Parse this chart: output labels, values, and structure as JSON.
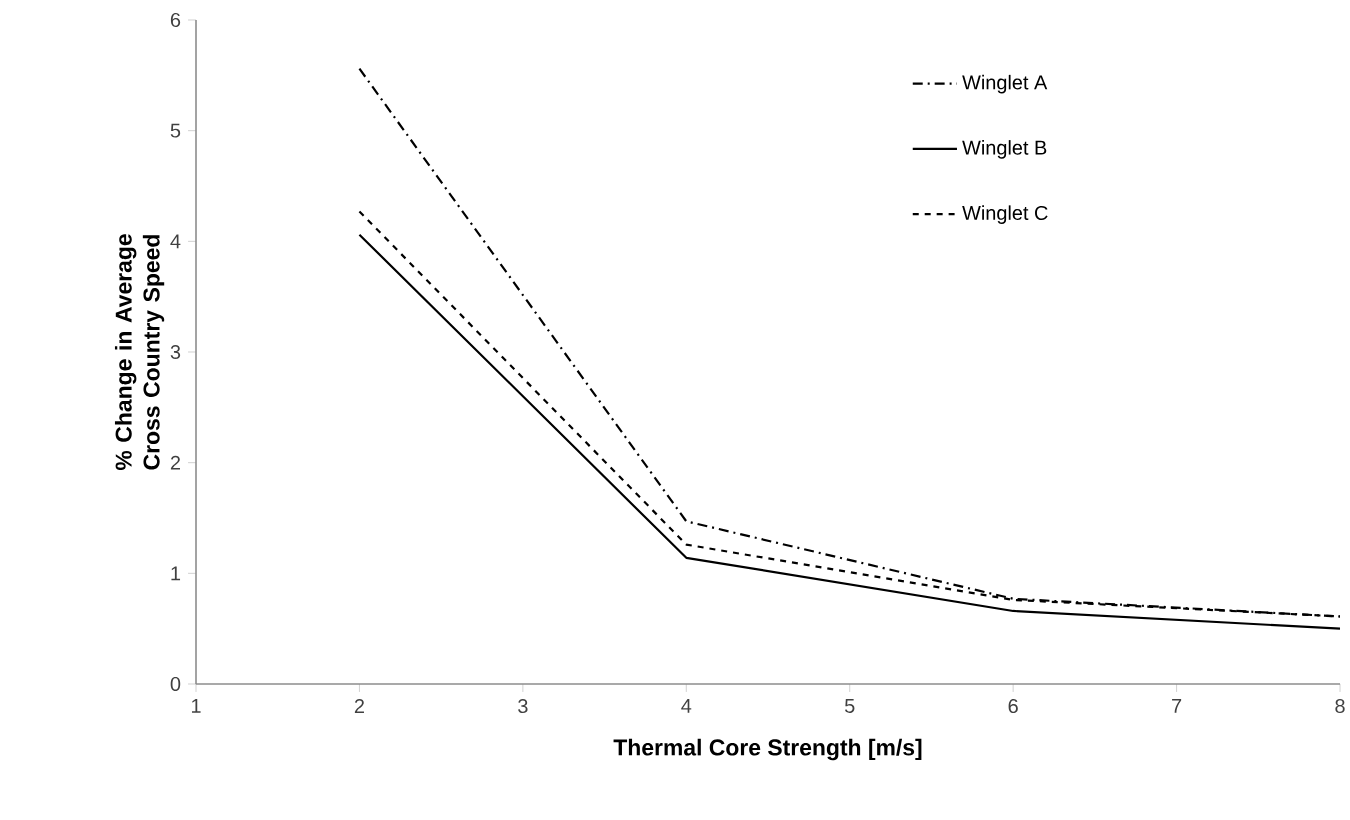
{
  "chart_data": {
    "type": "line",
    "xlabel": "Thermal Core Strength [m/s]",
    "ylabel": "% Change in Average Cross Country Speed",
    "x": [
      2,
      4,
      6,
      8
    ],
    "series": [
      {
        "name": "Winglet A",
        "color": "#000000",
        "line_style": "dashdot",
        "values": [
          5.56,
          1.47,
          0.77,
          0.61
        ]
      },
      {
        "name": "Winglet  B",
        "color": "#000000",
        "line_style": "solid",
        "values": [
          4.06,
          1.14,
          0.66,
          0.5
        ]
      },
      {
        "name": "Winglet C",
        "color": "#000000",
        "line_style": "dashed",
        "values": [
          4.27,
          1.26,
          0.76,
          0.61
        ]
      }
    ],
    "xlim": [
      1,
      8
    ],
    "ylim": [
      0,
      6
    ],
    "xticks": [
      1,
      2,
      3,
      4,
      5,
      6,
      7,
      8
    ],
    "yticks": [
      0,
      1,
      2,
      3,
      4,
      5,
      6
    ],
    "legend": "top right",
    "grid": false,
    "marker": "none"
  }
}
